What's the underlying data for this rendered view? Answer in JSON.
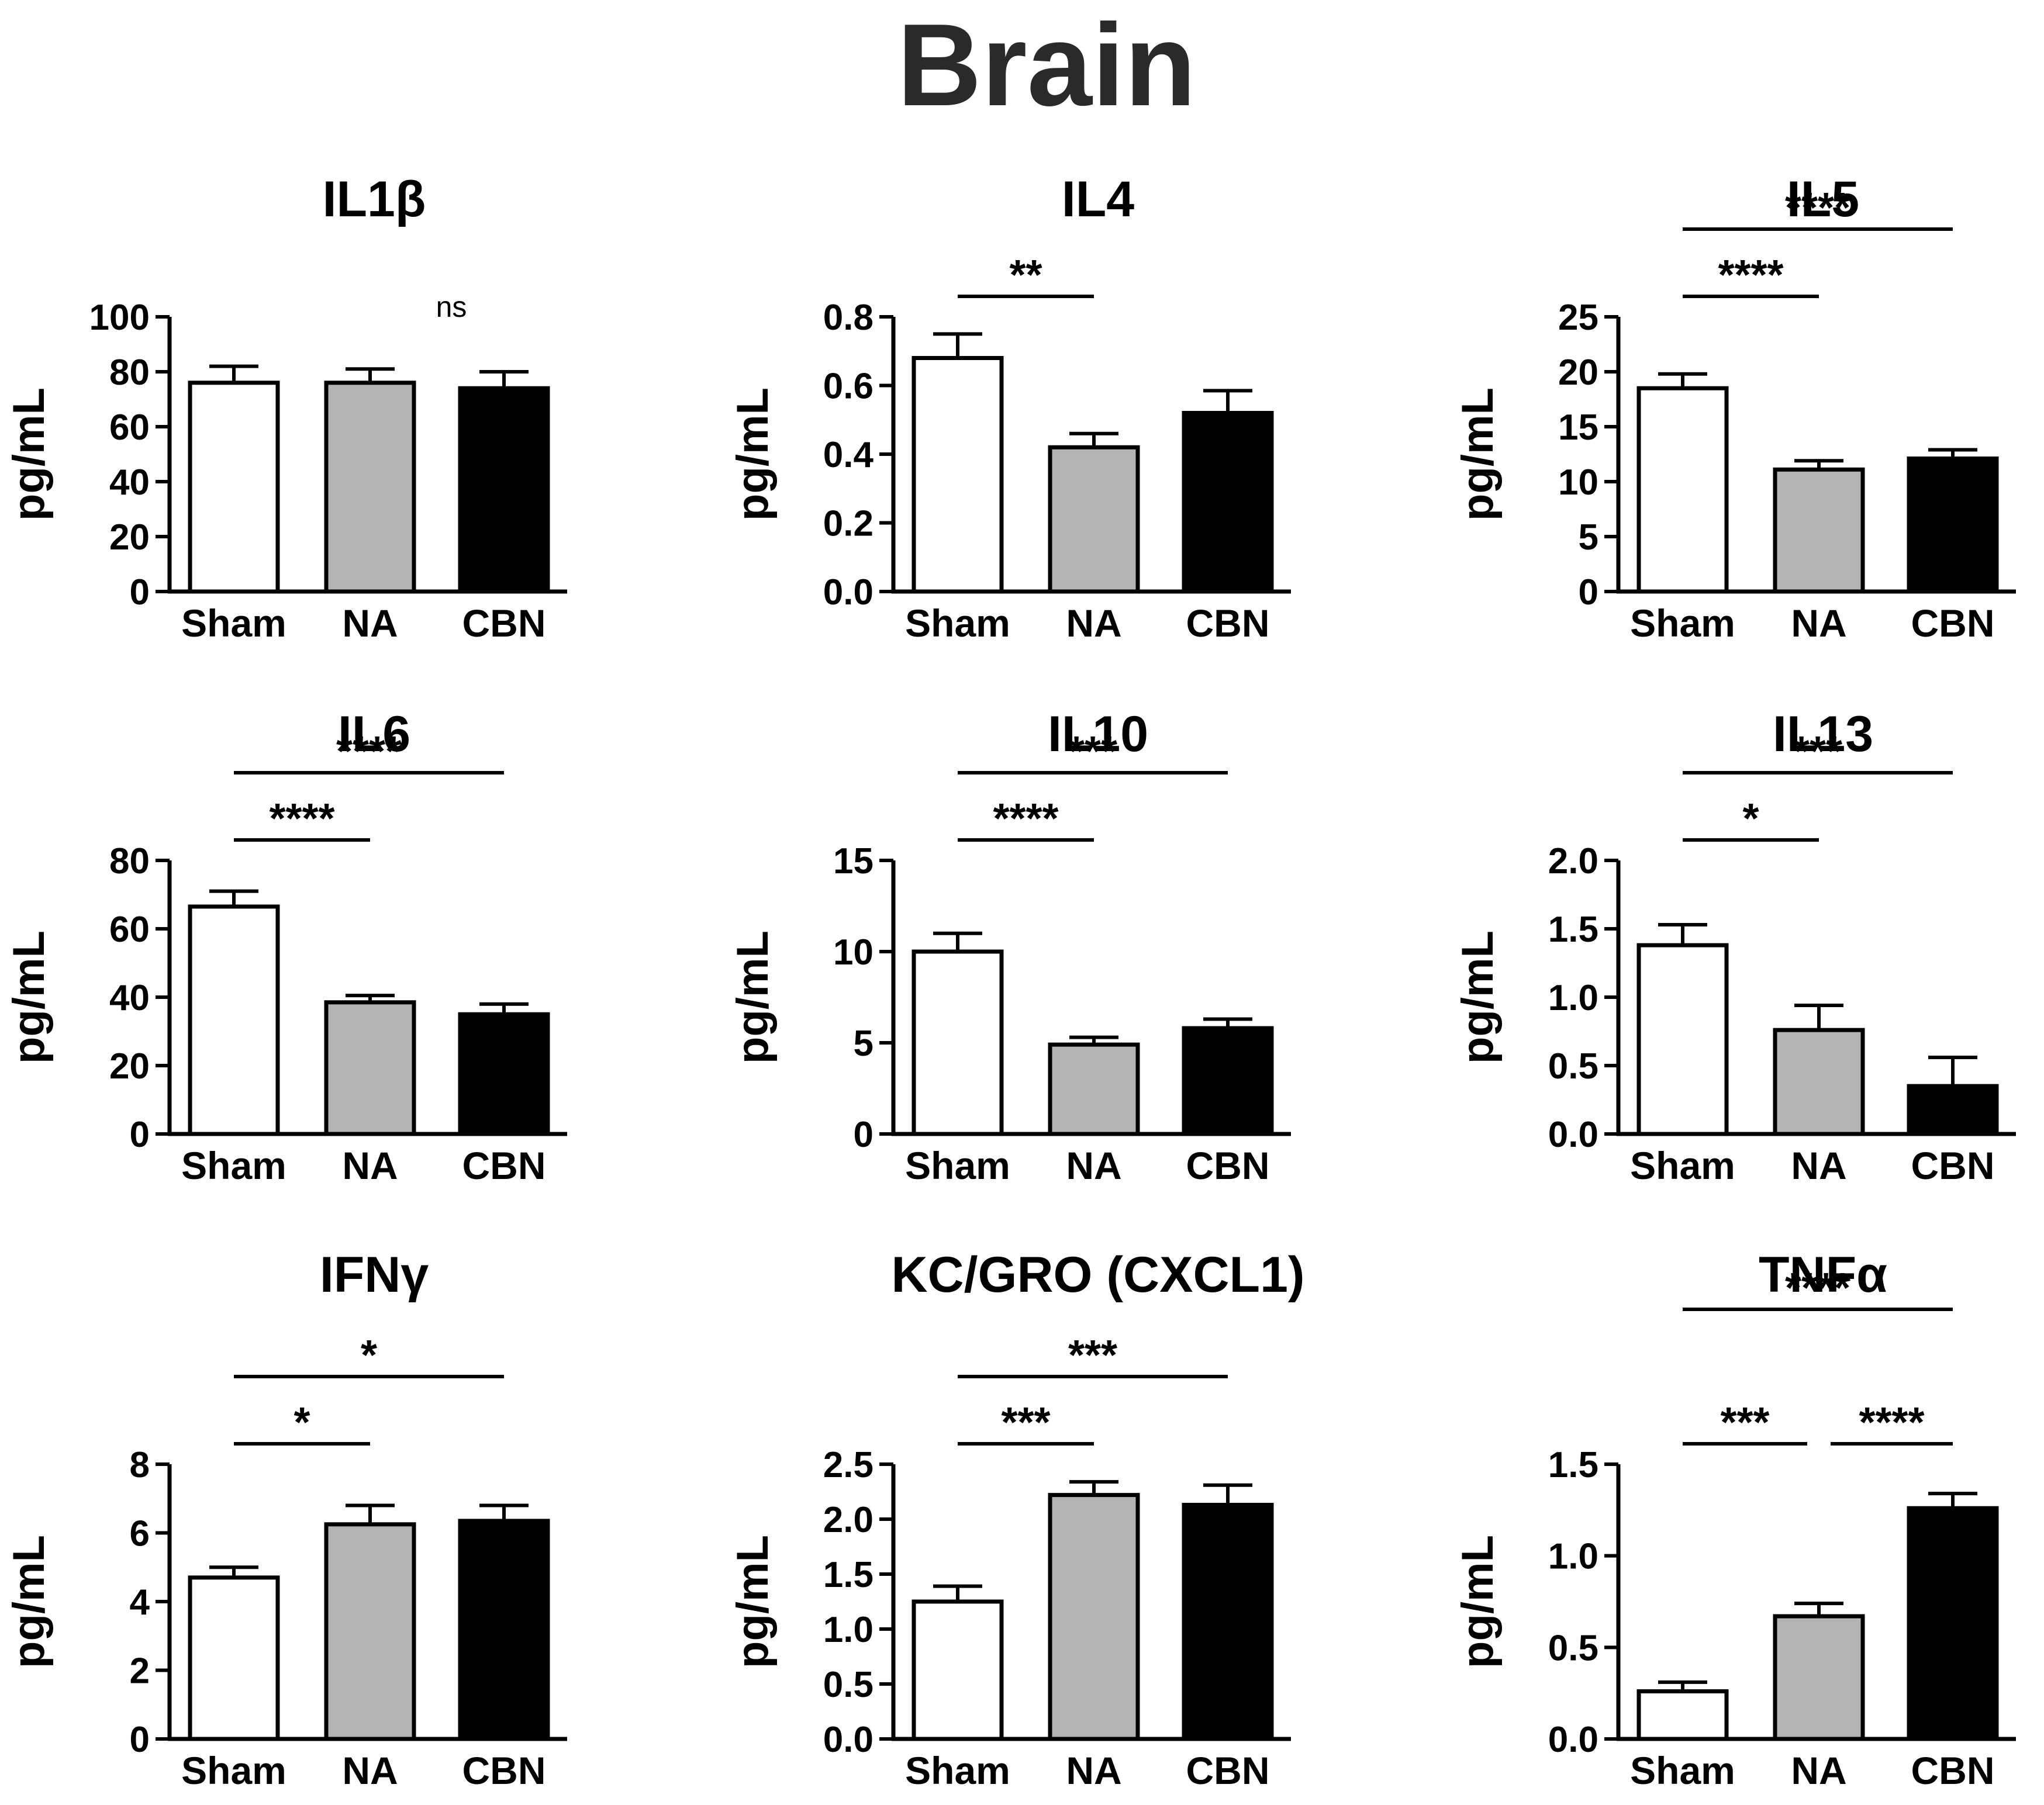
{
  "figure_title": "Brain",
  "colors": {
    "Sham": "#ffffff",
    "NA": "#b3b3b3",
    "CBN": "#000000",
    "stroke": "#000000"
  },
  "chart_data": [
    {
      "type": "bar",
      "title": "IL1β",
      "ylabel": "pg/mL",
      "categories": [
        "Sham",
        "NA",
        "CBN"
      ],
      "values": [
        76,
        76,
        74
      ],
      "errors": [
        6,
        5,
        6
      ],
      "ylim": [
        0,
        100
      ],
      "ticks": [
        "0",
        "20",
        "40",
        "60",
        "80",
        "100"
      ],
      "sig": [
        {
          "from": 0,
          "to": 2,
          "label": "ns"
        }
      ]
    },
    {
      "type": "bar",
      "title": "IL4",
      "ylabel": "pg/mL",
      "categories": [
        "Sham",
        "NA",
        "CBN"
      ],
      "values": [
        0.68,
        0.42,
        0.52
      ],
      "errors": [
        0.07,
        0.04,
        0.065
      ],
      "ylim": [
        0,
        0.8
      ],
      "ticks": [
        "0.0",
        "0.2",
        "0.4",
        "0.6",
        "0.8"
      ],
      "sig": [
        {
          "from": 0,
          "to": 1,
          "label": "**"
        }
      ]
    },
    {
      "type": "bar",
      "title": "IL5",
      "ylabel": "pg/mL",
      "categories": [
        "Sham",
        "NA",
        "CBN"
      ],
      "values": [
        18.5,
        11.1,
        12.1
      ],
      "errors": [
        1.3,
        0.8,
        0.8
      ],
      "ylim": [
        0,
        25
      ],
      "ticks": [
        "0",
        "5",
        "10",
        "15",
        "20",
        "25"
      ],
      "sig": [
        {
          "from": 0,
          "to": 1,
          "label": "****"
        },
        {
          "from": 0,
          "to": 2,
          "label": "****"
        }
      ]
    },
    {
      "type": "bar",
      "title": "IL6",
      "ylabel": "pg/mL",
      "categories": [
        "Sham",
        "NA",
        "CBN"
      ],
      "values": [
        66.5,
        38.5,
        35
      ],
      "errors": [
        4.5,
        2,
        3
      ],
      "ylim": [
        0,
        80
      ],
      "ticks": [
        "0",
        "20",
        "40",
        "60",
        "80"
      ],
      "sig": [
        {
          "from": 0,
          "to": 1,
          "label": "****"
        },
        {
          "from": 0,
          "to": 2,
          "label": "****"
        }
      ]
    },
    {
      "type": "bar",
      "title": "IL10",
      "ylabel": "pg/mL",
      "categories": [
        "Sham",
        "NA",
        "CBN"
      ],
      "values": [
        10,
        4.9,
        5.8
      ],
      "errors": [
        1,
        0.4,
        0.5
      ],
      "ylim": [
        0,
        15
      ],
      "ticks": [
        "0",
        "5",
        "10",
        "15"
      ],
      "sig": [
        {
          "from": 0,
          "to": 1,
          "label": "****"
        },
        {
          "from": 0,
          "to": 2,
          "label": "***"
        }
      ]
    },
    {
      "type": "bar",
      "title": "IL13",
      "ylabel": "pg/mL",
      "categories": [
        "Sham",
        "NA",
        "CBN"
      ],
      "values": [
        1.38,
        0.76,
        0.35
      ],
      "errors": [
        0.15,
        0.18,
        0.21
      ],
      "ylim": [
        0,
        2
      ],
      "ticks": [
        "0.0",
        "0.5",
        "1.0",
        "1.5",
        "2.0"
      ],
      "sig": [
        {
          "from": 0,
          "to": 1,
          "label": "*"
        },
        {
          "from": 0,
          "to": 2,
          "label": "***"
        }
      ]
    },
    {
      "type": "bar",
      "title": "IFNγ",
      "ylabel": "pg/mL",
      "categories": [
        "Sham",
        "NA",
        "CBN"
      ],
      "values": [
        4.7,
        6.25,
        6.35
      ],
      "errors": [
        0.3,
        0.55,
        0.45
      ],
      "ylim": [
        0,
        8
      ],
      "ticks": [
        "0",
        "2",
        "4",
        "6",
        "8"
      ],
      "sig": [
        {
          "from": 0,
          "to": 1,
          "label": "*"
        },
        {
          "from": 0,
          "to": 2,
          "label": "*"
        }
      ]
    },
    {
      "type": "bar",
      "title": "KC/GRO (CXCL1)",
      "ylabel": "pg/mL",
      "categories": [
        "Sham",
        "NA",
        "CBN"
      ],
      "values": [
        1.25,
        2.22,
        2.13
      ],
      "errors": [
        0.14,
        0.12,
        0.18
      ],
      "ylim": [
        0,
        2.5
      ],
      "ticks": [
        "0.0",
        "0.5",
        "1.0",
        "1.5",
        "2.0",
        "2.5"
      ],
      "sig": [
        {
          "from": 0,
          "to": 1,
          "label": "***"
        },
        {
          "from": 0,
          "to": 2,
          "label": "***"
        }
      ]
    },
    {
      "type": "bar",
      "title": "TNFα",
      "ylabel": "pg/mL",
      "categories": [
        "Sham",
        "NA",
        "CBN"
      ],
      "values": [
        0.26,
        0.67,
        1.26
      ],
      "errors": [
        0.05,
        0.07,
        0.08
      ],
      "ylim": [
        0,
        1.5
      ],
      "ticks": [
        "0.0",
        "0.5",
        "1.0",
        "1.5"
      ],
      "sig": [
        {
          "from": 0,
          "to": 1,
          "label": "***"
        },
        {
          "from": 1,
          "to": 2,
          "label": "****"
        },
        {
          "from": 0,
          "to": 2,
          "label": "****"
        }
      ]
    }
  ]
}
